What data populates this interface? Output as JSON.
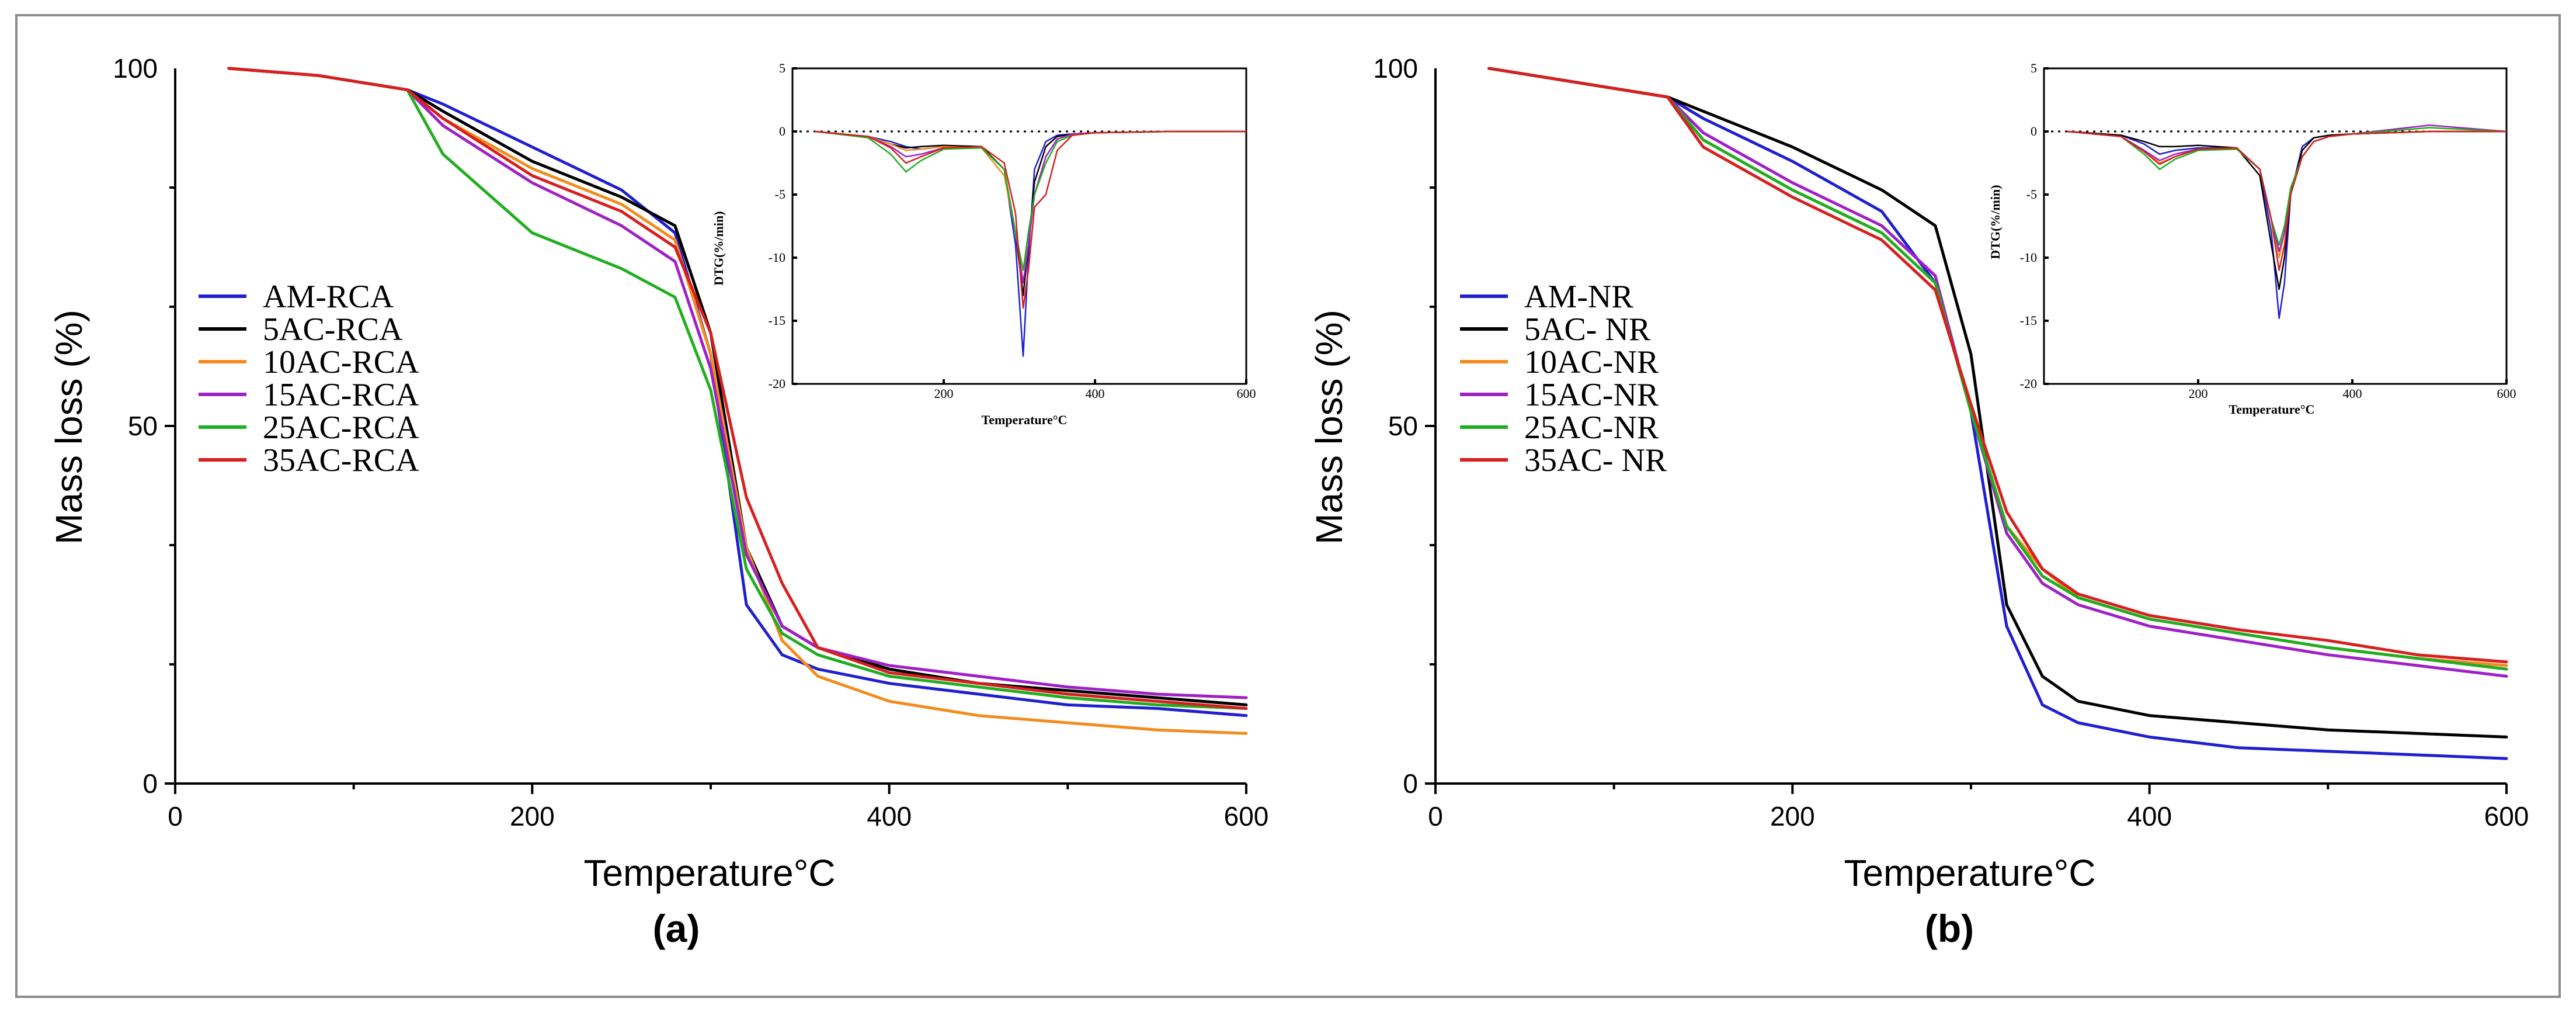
{
  "chart_data": [
    {
      "type": "line",
      "panel_label": "(a)",
      "xlabel": "Temperature°C",
      "ylabel": "Mass loss (%)",
      "xlim": [
        0,
        600
      ],
      "ylim": [
        0,
        100
      ],
      "x_ticks": [
        "0",
        "200",
        "400",
        "600"
      ],
      "y_ticks": [
        "0",
        "50",
        "100"
      ],
      "legend_position": "middle-left",
      "x": [
        30,
        80,
        130,
        150,
        200,
        250,
        280,
        300,
        320,
        340,
        360,
        400,
        450,
        500,
        550,
        600
      ],
      "series": [
        {
          "name": "AM-RCA",
          "color": "#1f1fd0",
          "values": [
            100,
            99,
            97,
            95,
            89,
            83,
            77,
            60,
            25,
            18,
            16,
            14,
            12.5,
            11,
            10.5,
            9.5
          ]
        },
        {
          "name": "5AC-RCA",
          "color": "#000000",
          "values": [
            100,
            99,
            97,
            94,
            87,
            82,
            78,
            63,
            33,
            22,
            19,
            16,
            14,
            13,
            12,
            11
          ]
        },
        {
          "name": "10AC-RCA",
          "color": "#f28c1e",
          "values": [
            100,
            99,
            97,
            93,
            86,
            81,
            76,
            60,
            33,
            20,
            15,
            11.5,
            9.5,
            8.5,
            7.5,
            7
          ]
        },
        {
          "name": "15AC-RCA",
          "color": "#a020c8",
          "values": [
            100,
            99,
            97,
            92,
            84,
            78,
            73,
            58,
            32,
            22,
            19,
            16.5,
            15,
            13.5,
            12.5,
            12
          ]
        },
        {
          "name": "25AC-RCA",
          "color": "#1fae1f",
          "values": [
            100,
            99,
            97,
            88,
            77,
            72,
            68,
            55,
            30,
            21,
            18,
            15,
            13.5,
            12,
            11,
            10.5
          ]
        },
        {
          "name": "35AC-RCA",
          "color": "#d81f1f",
          "values": [
            100,
            99,
            97,
            93,
            85,
            80,
            75,
            63,
            40,
            28,
            19,
            15.5,
            14,
            12.5,
            11.5,
            10.5
          ]
        }
      ],
      "inset": {
        "type": "line",
        "xlabel": "Temperature°C",
        "ylabel": "DTG(%/min)",
        "xlim": [
          0,
          600
        ],
        "ylim": [
          -20,
          5
        ],
        "x_ticks": [
          "200",
          "400",
          "600"
        ],
        "y_ticks": [
          "5",
          "0",
          "-5",
          "-10",
          "-15",
          "-20"
        ],
        "x": [
          30,
          100,
          130,
          150,
          170,
          200,
          250,
          280,
          295,
          305,
          312,
          320,
          335,
          350,
          370,
          400,
          500,
          600
        ],
        "series": [
          {
            "name": "AM-RCA",
            "color": "#1f1fd0",
            "values": [
              0,
              -0.4,
              -0.8,
              -1.2,
              -1.4,
              -1.2,
              -1.2,
              -3,
              -9,
              -17.8,
              -10,
              -3,
              -0.8,
              -0.3,
              -0.2,
              -0.1,
              0,
              0
            ]
          },
          {
            "name": "5AC-RCA",
            "color": "#000000",
            "values": [
              0,
              -0.4,
              -1,
              -1.3,
              -1.2,
              -1.1,
              -1.2,
              -3,
              -8,
              -13,
              -9,
              -4,
              -1.2,
              -0.4,
              -0.2,
              -0.1,
              0,
              0
            ]
          },
          {
            "name": "10AC-RCA",
            "color": "#f28c1e",
            "values": [
              0,
              -0.4,
              -1,
              -1.5,
              -1.4,
              -1.2,
              -1.3,
              -3.5,
              -8,
              -11,
              -9,
              -5,
              -2,
              -0.6,
              -0.2,
              -0.1,
              0,
              0
            ]
          },
          {
            "name": "15AC-RCA",
            "color": "#a020c8",
            "values": [
              0,
              -0.4,
              -1.2,
              -2,
              -1.8,
              -1.3,
              -1.3,
              -3,
              -8,
              -12,
              -9,
              -5,
              -2,
              -0.6,
              -0.2,
              -0.1,
              0,
              0
            ]
          },
          {
            "name": "25AC-RCA",
            "color": "#1fae1f",
            "values": [
              0,
              -0.5,
              -1.8,
              -3.2,
              -2.3,
              -1.4,
              -1.3,
              -3,
              -8,
              -11,
              -8,
              -5,
              -2.5,
              -0.8,
              -0.3,
              -0.1,
              0,
              0
            ]
          },
          {
            "name": "35AC-RCA",
            "color": "#d81f1f",
            "values": [
              0,
              -0.4,
              -1.3,
              -2.5,
              -2,
              -1.3,
              -1.2,
              -2.5,
              -6.5,
              -14,
              -11,
              -6,
              -5,
              -1.5,
              -0.3,
              -0.1,
              0,
              0
            ]
          }
        ]
      }
    },
    {
      "type": "line",
      "panel_label": "(b)",
      "xlabel": "Temperature°C",
      "ylabel": "Mass loss (%)",
      "xlim": [
        0,
        600
      ],
      "ylim": [
        0,
        100
      ],
      "x_ticks": [
        "0",
        "200",
        "400",
        "600"
      ],
      "y_ticks": [
        "0",
        "50",
        "100"
      ],
      "legend_position": "middle-left",
      "x": [
        30,
        80,
        130,
        150,
        200,
        250,
        280,
        300,
        320,
        340,
        360,
        400,
        450,
        500,
        550,
        600
      ],
      "series": [
        {
          "name": "AM-NR",
          "color": "#1f1fd0",
          "values": [
            100,
            98,
            96,
            93,
            87,
            80,
            70,
            52,
            22,
            11,
            8.5,
            6.5,
            5,
            4.5,
            4,
            3.5
          ]
        },
        {
          "name": "5AC- NR",
          "color": "#000000",
          "values": [
            100,
            98,
            96,
            94,
            89,
            83,
            78,
            60,
            25,
            15,
            11.5,
            9.5,
            8.5,
            7.5,
            7,
            6.5
          ]
        },
        {
          "name": "10AC-NR",
          "color": "#f28c1e",
          "values": [
            100,
            98,
            96,
            90,
            83,
            77,
            70,
            52,
            36,
            30,
            26,
            23,
            21,
            19,
            17.5,
            16.5
          ]
        },
        {
          "name": "15AC-NR",
          "color": "#a020c8",
          "values": [
            100,
            98,
            96,
            91,
            84,
            78,
            71,
            52,
            35,
            28,
            25,
            22,
            20,
            18,
            16.5,
            15
          ]
        },
        {
          "name": "25AC-NR",
          "color": "#1fae1f",
          "values": [
            100,
            98,
            96,
            90,
            83,
            77,
            70,
            52,
            36,
            29,
            26,
            23,
            21,
            19,
            17.5,
            16
          ]
        },
        {
          "name": "35AC- NR",
          "color": "#d81f1f",
          "values": [
            100,
            98,
            96,
            89,
            82,
            76,
            69,
            53,
            38,
            30,
            26.5,
            23.5,
            21.5,
            20,
            18,
            17
          ]
        }
      ],
      "inset": {
        "type": "line",
        "xlabel": "Temperature°C",
        "ylabel": "DTG(%/min)",
        "xlim": [
          0,
          600
        ],
        "ylim": [
          -20,
          5
        ],
        "x_ticks": [
          "200",
          "400",
          "600"
        ],
        "y_ticks": [
          "5",
          "0",
          "-5",
          "-10",
          "-15",
          "-20"
        ],
        "x": [
          30,
          100,
          130,
          150,
          170,
          200,
          250,
          280,
          295,
          305,
          312,
          320,
          335,
          350,
          370,
          400,
          500,
          600
        ],
        "series": [
          {
            "name": "AM-NR",
            "color": "#1f1fd0",
            "values": [
              0,
              -0.3,
              -1,
              -1.8,
              -1.5,
              -1.3,
              -1.3,
              -3,
              -8,
              -14.8,
              -12,
              -5,
              -1.2,
              -0.5,
              -0.3,
              -0.2,
              0,
              0
            ]
          },
          {
            "name": "5AC- NR",
            "color": "#000000",
            "values": [
              0,
              -0.3,
              -0.8,
              -1.2,
              -1.2,
              -1.1,
              -1.3,
              -3.5,
              -9,
              -12.5,
              -10,
              -5,
              -1.5,
              -0.5,
              -0.3,
              -0.2,
              0,
              0
            ]
          },
          {
            "name": "10AC-NR",
            "color": "#f28c1e",
            "values": [
              0,
              -0.4,
              -1.5,
              -2.5,
              -2,
              -1.4,
              -1.3,
              -3,
              -7,
              -10,
              -8,
              -4.5,
              -2,
              -0.8,
              -0.4,
              -0.2,
              0,
              0
            ]
          },
          {
            "name": "15AC-NR",
            "color": "#a020c8",
            "values": [
              0,
              -0.4,
              -1.5,
              -2.3,
              -1.8,
              -1.4,
              -1.3,
              -3,
              -7,
              -9.5,
              -8,
              -4.5,
              -2,
              -0.8,
              -0.4,
              -0.2,
              0.5,
              0
            ]
          },
          {
            "name": "25AC-NR",
            "color": "#1fae1f",
            "values": [
              0,
              -0.4,
              -1.8,
              -3,
              -2.2,
              -1.5,
              -1.4,
              -3,
              -7,
              -9,
              -7.5,
              -4.5,
              -2,
              -0.8,
              -0.4,
              -0.2,
              0.3,
              0
            ]
          },
          {
            "name": "35AC- NR",
            "color": "#d81f1f",
            "values": [
              0,
              -0.4,
              -1.6,
              -2.6,
              -2,
              -1.4,
              -1.3,
              -3,
              -7,
              -11,
              -9,
              -5,
              -2,
              -0.8,
              -0.4,
              -0.2,
              0,
              0
            ]
          }
        ]
      }
    }
  ]
}
